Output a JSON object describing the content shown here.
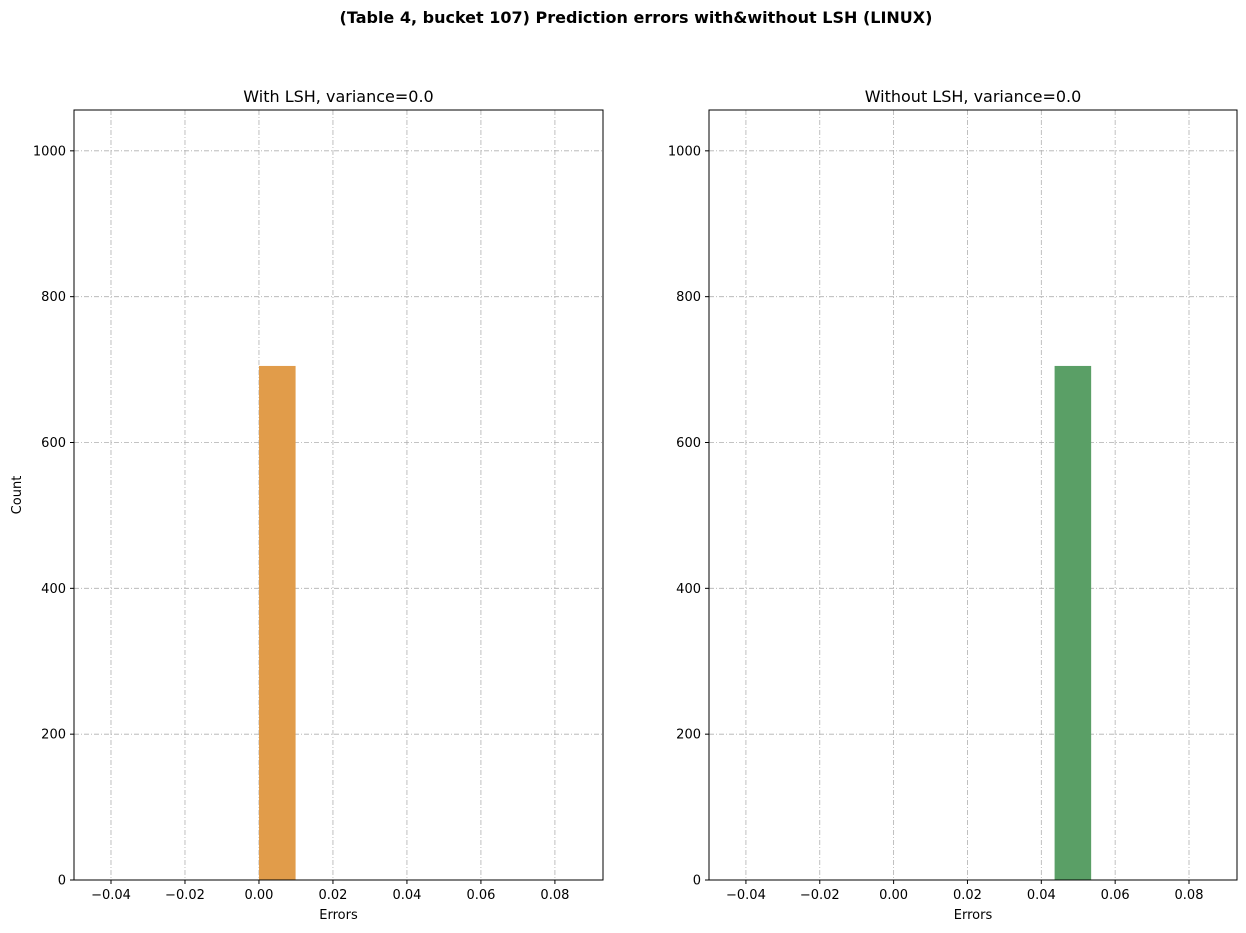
{
  "figure_title": "(Table 4, bucket 107) Prediction errors with&without LSH (LINUX)",
  "chart_data": [
    {
      "type": "bar",
      "title": "With LSH, variance=0.0",
      "xlabel": "Errors",
      "ylabel": "Count",
      "xlim": [
        -0.05,
        0.093
      ],
      "ylim": [
        0,
        1056
      ],
      "xticks": [
        -0.04,
        -0.02,
        0.0,
        0.02,
        0.04,
        0.06,
        0.08
      ],
      "xtick_labels": [
        "−0.04",
        "−0.02",
        "0.00",
        "0.02",
        "0.04",
        "0.06",
        "0.08"
      ],
      "yticks": [
        0,
        200,
        400,
        600,
        800,
        1000
      ],
      "ytick_labels": [
        "0",
        "200",
        "400",
        "600",
        "800",
        "1000"
      ],
      "grid": true,
      "color": "#e19c4a",
      "bins": [
        {
          "x0": 0.0,
          "x1": 0.0099,
          "count": 705
        }
      ]
    },
    {
      "type": "bar",
      "title": "Without LSH, variance=0.0",
      "xlabel": "Errors",
      "ylabel": "",
      "xlim": [
        -0.05,
        0.093
      ],
      "ylim": [
        0,
        1056
      ],
      "xticks": [
        -0.04,
        -0.02,
        0.0,
        0.02,
        0.04,
        0.06,
        0.08
      ],
      "xtick_labels": [
        "−0.04",
        "−0.02",
        "0.00",
        "0.02",
        "0.04",
        "0.06",
        "0.08"
      ],
      "yticks": [
        0,
        200,
        400,
        600,
        800,
        1000
      ],
      "ytick_labels": [
        "0",
        "200",
        "400",
        "600",
        "800",
        "1000"
      ],
      "grid": true,
      "color": "#5a9f66",
      "bins": [
        {
          "x0": 0.0436,
          "x1": 0.0535,
          "count": 705
        }
      ]
    }
  ]
}
